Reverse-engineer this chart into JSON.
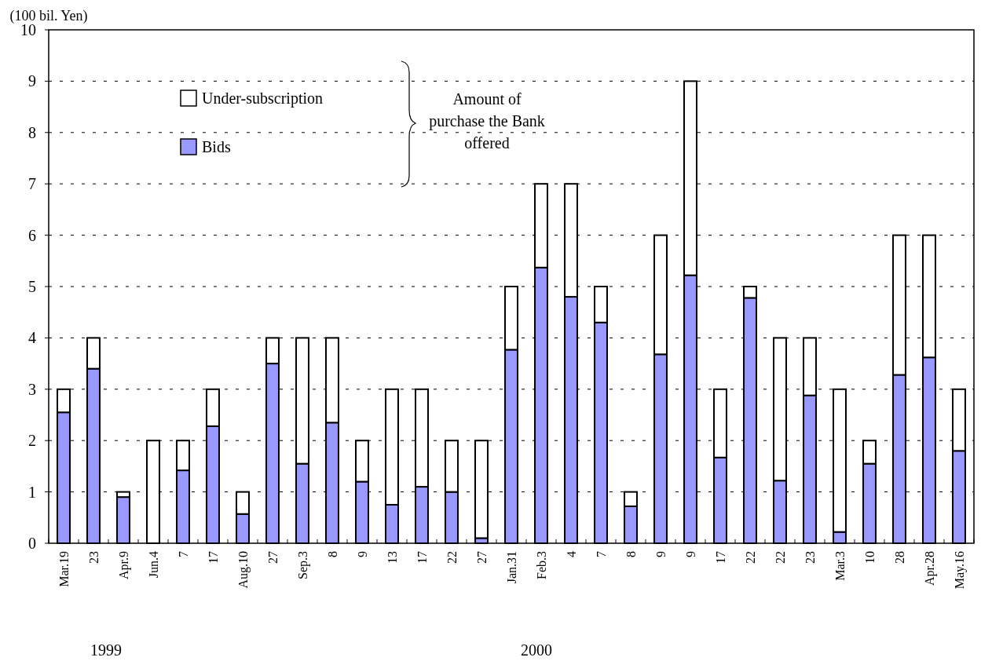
{
  "chart_data": {
    "type": "bar",
    "stacked": true,
    "ylabel": "(100 bil. Yen)",
    "categories": [
      "Mar.19",
      "23",
      "Apr.9",
      "Jun.4",
      "7",
      "17",
      "Aug.10",
      "27",
      "Sep.3",
      "8",
      "9",
      "13",
      "17",
      "22",
      "27",
      "Jan.31",
      "Feb.3",
      "4",
      "7",
      "8",
      "9",
      "9",
      "17",
      "22",
      "22",
      "23",
      "Mar.3",
      "10",
      "28",
      "Apr.28",
      "May.16"
    ],
    "series": [
      {
        "name": "Bids",
        "color": "#9999ff",
        "values": [
          2.55,
          3.4,
          0.9,
          0,
          1.42,
          2.28,
          0.57,
          3.5,
          1.55,
          2.35,
          1.2,
          0.75,
          1.1,
          1.0,
          0.1,
          3.77,
          5.37,
          4.8,
          4.3,
          0.72,
          3.68,
          5.22,
          1.67,
          4.78,
          1.22,
          2.88,
          0.22,
          1.55,
          3.28,
          3.62,
          1.8
        ]
      },
      {
        "name": "Under-subscription",
        "color": "#ffffff",
        "values": [
          0.45,
          0.6,
          0.1,
          2,
          0.58,
          0.72,
          0.43,
          0.5,
          2.45,
          1.65,
          0.8,
          2.25,
          1.9,
          1.0,
          1.9,
          1.23,
          1.63,
          2.2,
          0.7,
          0.28,
          2.32,
          3.78,
          1.33,
          0.22,
          2.78,
          1.12,
          2.78,
          0.45,
          2.72,
          2.38,
          1.2
        ]
      }
    ],
    "ylim": [
      0,
      10
    ],
    "yticks": [
      0,
      1,
      2,
      3,
      4,
      5,
      6,
      7,
      8,
      9,
      10
    ],
    "grid": "y",
    "legend": "top left",
    "annotations": [
      "Amount of purchase the Bank offered",
      "1999",
      "2000"
    ]
  }
}
